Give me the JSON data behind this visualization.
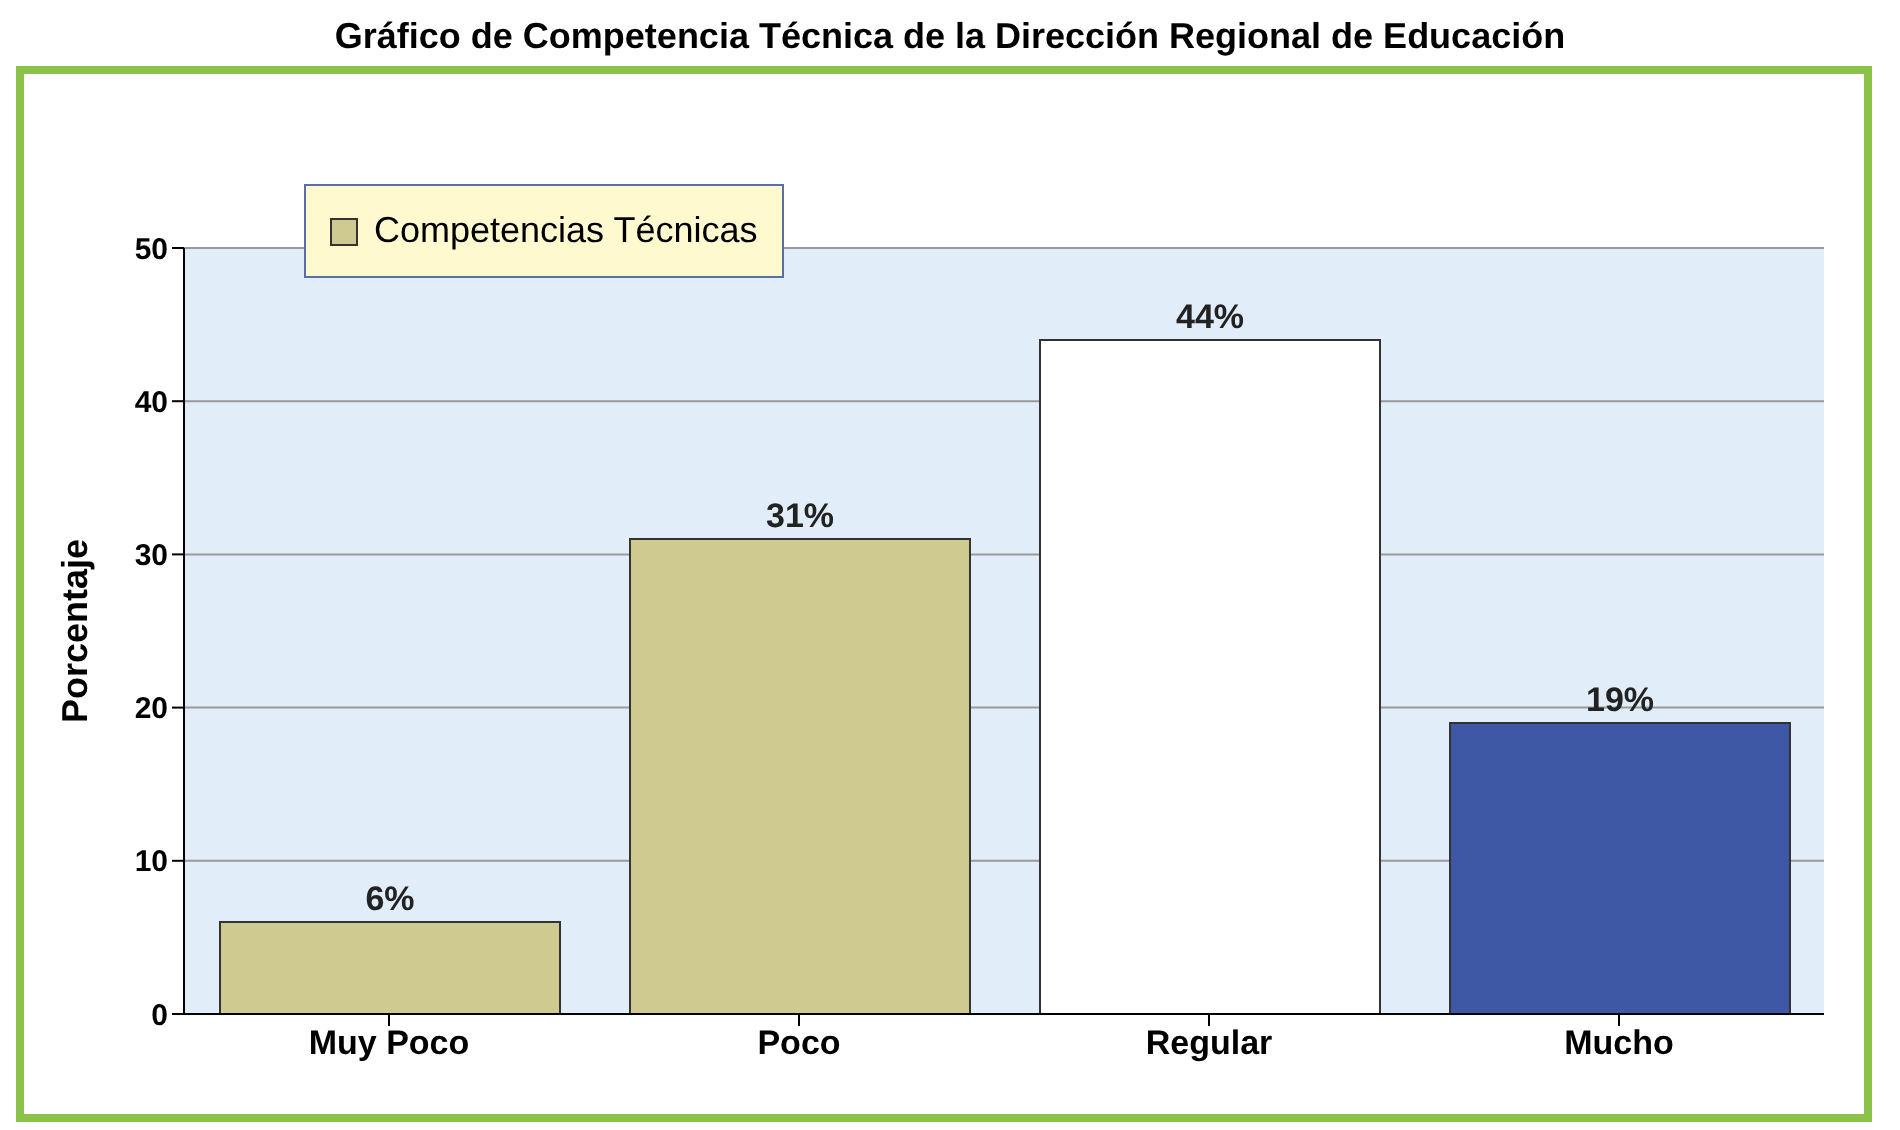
{
  "chart_data": {
    "type": "bar",
    "title": "Gráfico de Competencia Técnica de la Dirección Regional de Educación",
    "ylabel": "Porcentaje",
    "categories": [
      "Muy Poco",
      "Poco",
      "Regular",
      "Mucho"
    ],
    "series": [
      {
        "name": "Competencias Técnicas",
        "values": [
          6,
          31,
          44,
          19
        ],
        "colors": [
          "#cfca8f",
          "#cfca8f",
          "#ffffff",
          "#3f58a6"
        ],
        "value_labels": [
          "6%",
          "31%",
          "44%",
          "19%"
        ]
      }
    ],
    "ylim": [
      0,
      50
    ],
    "yticks": [
      0,
      10,
      20,
      30,
      40,
      50
    ],
    "grid": "y",
    "legend": "top left"
  }
}
